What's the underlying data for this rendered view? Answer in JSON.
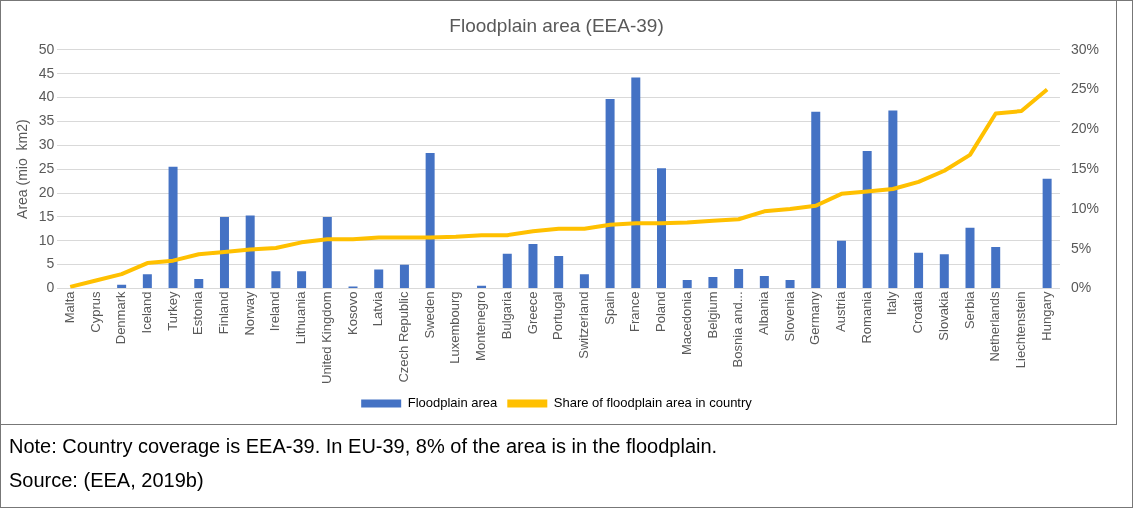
{
  "chart_data": {
    "type": "bar",
    "title": "Floodplain area (EEA-39)",
    "ylabel": "Area (mio  km2)",
    "categories": [
      "Malta",
      "Cyprus",
      "Denmark",
      "Iceland",
      "Turkey",
      "Estonia",
      "Finland",
      "Norway",
      "Ireland",
      "Lithuania",
      "United Kingdom",
      "Kosovo",
      "Latvia",
      "Czech Republic",
      "Sweden",
      "Luxembourg",
      "Montenegro",
      "Bulgaria",
      "Greece",
      "Portugal",
      "Switzerland",
      "Spain",
      "France",
      "Poland",
      "Macedonia",
      "Belgium",
      "Bosnia and...",
      "Albania",
      "Slovenia",
      "Germany",
      "Austria",
      "Romania",
      "Italy",
      "Croatia",
      "Slovakia",
      "Serbia",
      "Netherlands",
      "Liechtenstein",
      "Hungary"
    ],
    "series": [
      {
        "name": "Floodplain area",
        "color": "#4472c4",
        "values": [
          0,
          0,
          0.8,
          3,
          25.5,
          2,
          15,
          15.3,
          3.6,
          3.6,
          15,
          0.4,
          4,
          5,
          28.4,
          0,
          0.6,
          7.3,
          9.3,
          6.8,
          3,
          39.7,
          44.2,
          25.2,
          1.8,
          2.4,
          4.1,
          2.6,
          1.8,
          37,
          10,
          28.8,
          37.3,
          7.5,
          7.2,
          12.7,
          8.7,
          0,
          23
        ]
      },
      {
        "name": "Share of floodplain area in country",
        "type": "line",
        "axis": "y2",
        "color": "#ffc000",
        "values": [
          0.2,
          1,
          1.8,
          3.2,
          3.5,
          4.3,
          4.6,
          4.9,
          5.1,
          5.8,
          6.2,
          6.2,
          6.4,
          6.4,
          6.4,
          6.5,
          6.7,
          6.7,
          7.2,
          7.5,
          7.5,
          8,
          8.2,
          8.2,
          8.3,
          8.5,
          8.7,
          9.7,
          10,
          10.4,
          11.9,
          12.2,
          12.5,
          13.4,
          14.8,
          16.8,
          22,
          22.3,
          25
        ]
      }
    ],
    "ylim": [
      0,
      50
    ],
    "yticks": [
      0,
      5,
      10,
      15,
      20,
      25,
      30,
      35,
      40,
      45,
      50
    ],
    "y2lim": [
      0,
      30
    ],
    "y2ticks": [
      {
        "value": 0,
        "label": "0%"
      },
      {
        "value": 5,
        "label": "5%"
      },
      {
        "value": 10,
        "label": "10%"
      },
      {
        "value": 15,
        "label": "15%"
      },
      {
        "value": 20,
        "label": "20%"
      },
      {
        "value": 25,
        "label": "25%"
      },
      {
        "value": 30,
        "label": "30%"
      }
    ],
    "grid": "y",
    "legend": "bottom",
    "marker": "none",
    "line_style": "solid",
    "annotations": [
      "Note: Country coverage is EEA-39. In EU-39, 8% of the area is in the floodplain.",
      "Source: (EEA, 2019b)"
    ]
  }
}
